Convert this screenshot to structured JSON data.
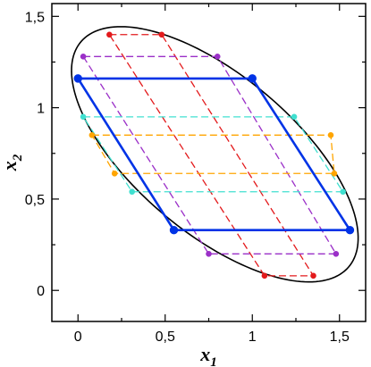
{
  "chart_data": {
    "type": "scatter",
    "title": "",
    "xlabel": {
      "base": "x",
      "sub": "1"
    },
    "ylabel": {
      "base": "x",
      "sub": "2"
    },
    "xlim": [
      -0.15,
      1.65
    ],
    "ylim": [
      -0.17,
      1.57
    ],
    "xticks": [
      0,
      0.5,
      1,
      1.5
    ],
    "xtick_labels": [
      "0",
      "0,5",
      "1",
      "1,5"
    ],
    "yticks": [
      0,
      0.5,
      1,
      1.5
    ],
    "ytick_labels": [
      "0",
      "0,5",
      "1",
      "1,5"
    ],
    "grid": false,
    "ellipse": {
      "center": [
        0.785,
        0.745
      ],
      "semi_axes": [
        0.985,
        0.44
      ],
      "rotation_deg": -38,
      "color": "#000000"
    },
    "parallelograms": [
      {
        "color": "#e31a1c",
        "dashed": true,
        "marker_color": "#e31a1c",
        "vertices": [
          [
            0.18,
            1.4
          ],
          [
            0.48,
            1.4
          ],
          [
            1.35,
            0.08
          ],
          [
            1.07,
            0.08
          ]
        ]
      },
      {
        "color": "#9b30c8",
        "dashed": true,
        "marker_color": "#9b30c8",
        "vertices": [
          [
            0.03,
            1.28
          ],
          [
            0.8,
            1.28
          ],
          [
            1.48,
            0.2
          ],
          [
            0.75,
            0.2
          ]
        ]
      },
      {
        "color": "#0033e6",
        "dashed": false,
        "marker_color": "#0033e6",
        "vertices": [
          [
            0.0,
            1.16
          ],
          [
            1.0,
            1.16
          ],
          [
            1.56,
            0.33
          ],
          [
            0.55,
            0.33
          ]
        ]
      },
      {
        "color": "#40e0d0",
        "dashed": true,
        "marker_color": "#40e0d0",
        "vertices": [
          [
            0.03,
            0.95
          ],
          [
            1.24,
            0.95
          ],
          [
            1.52,
            0.54
          ],
          [
            0.31,
            0.54
          ]
        ]
      },
      {
        "color": "#ffa500",
        "dashed": true,
        "marker_color": "#ffa500",
        "vertices": [
          [
            0.08,
            0.85
          ],
          [
            1.45,
            0.85
          ],
          [
            1.47,
            0.64
          ],
          [
            0.21,
            0.64
          ]
        ]
      }
    ]
  }
}
